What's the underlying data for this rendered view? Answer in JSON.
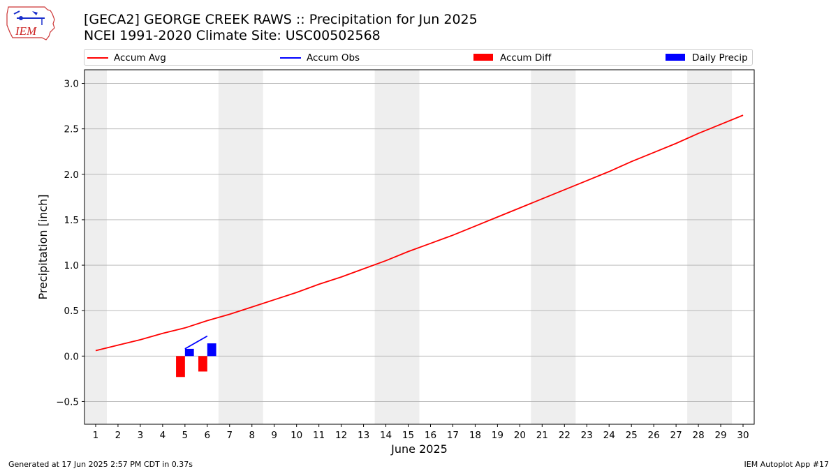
{
  "header": {
    "title": "[GECA2] GEORGE CREEK RAWS :: Precipitation for Jun 2025",
    "subtitle": "NCEI 1991-2020 Climate Site: USC00502568"
  },
  "logo": {
    "text": "IEM",
    "icon": "iem-logo-icon"
  },
  "footer": {
    "left": "Generated at 17 Jun 2025 2:57 PM CDT in 0.37s",
    "right": "IEM Autoplot App #17"
  },
  "colors": {
    "accum_avg": "#ff0000",
    "accum_obs": "#0000ff",
    "accum_diff": "#ff0000",
    "daily_precip": "#0000ff",
    "weekend_band": "#eeeeee",
    "grid": "#b0b0b0"
  },
  "chart_data": {
    "type": "bar",
    "title": "[GECA2] GEORGE CREEK RAWS :: Precipitation for Jun 2025",
    "subtitle": "NCEI 1991-2020 Climate Site: USC00502568",
    "xlabel": "June 2025",
    "ylabel": "Precipitation [inch]",
    "xlim": [
      0.5,
      30.5
    ],
    "ylim": [
      -0.75,
      3.15
    ],
    "x_ticks": [
      1,
      2,
      3,
      4,
      5,
      6,
      7,
      8,
      9,
      10,
      11,
      12,
      13,
      14,
      15,
      16,
      17,
      18,
      19,
      20,
      21,
      22,
      23,
      24,
      25,
      26,
      27,
      28,
      29,
      30
    ],
    "y_ticks": [
      -0.5,
      0.0,
      0.5,
      1.0,
      1.5,
      2.0,
      2.5,
      3.0
    ],
    "y_tick_labels": [
      "−0.5",
      "0.0",
      "0.5",
      "1.0",
      "1.5",
      "2.0",
      "2.5",
      "3.0"
    ],
    "grid": "y",
    "legend_position": "top",
    "weekend_bands": [
      [
        0.5,
        1.5
      ],
      [
        6.5,
        8.5
      ],
      [
        13.5,
        15.5
      ],
      [
        20.5,
        22.5
      ],
      [
        27.5,
        29.5
      ]
    ],
    "legend": [
      {
        "label": "Accum Avg",
        "kind": "line",
        "color": "#ff0000"
      },
      {
        "label": "Accum Obs",
        "kind": "line",
        "color": "#0000ff"
      },
      {
        "label": "Accum Diff",
        "kind": "patch",
        "color": "#ff0000"
      },
      {
        "label": "Daily Precip",
        "kind": "patch",
        "color": "#0000ff"
      }
    ],
    "series": [
      {
        "name": "Accum Avg",
        "type": "line",
        "x": [
          1,
          2,
          3,
          4,
          5,
          6,
          7,
          8,
          9,
          10,
          11,
          12,
          13,
          14,
          15,
          16,
          17,
          18,
          19,
          20,
          21,
          22,
          23,
          24,
          25,
          26,
          27,
          28,
          29,
          30
        ],
        "values": [
          0.06,
          0.12,
          0.18,
          0.25,
          0.31,
          0.39,
          0.46,
          0.54,
          0.62,
          0.7,
          0.79,
          0.87,
          0.96,
          1.05,
          1.15,
          1.24,
          1.33,
          1.43,
          1.53,
          1.63,
          1.73,
          1.83,
          1.93,
          2.03,
          2.14,
          2.24,
          2.34,
          2.45,
          2.55,
          2.65
        ]
      },
      {
        "name": "Accum Obs",
        "type": "line",
        "x": [
          5,
          6
        ],
        "values": [
          0.08,
          0.22
        ]
      },
      {
        "name": "Accum Diff",
        "type": "bar",
        "x": [
          5,
          6
        ],
        "values": [
          -0.23,
          -0.17
        ]
      },
      {
        "name": "Daily Precip",
        "type": "bar",
        "x": [
          5,
          6
        ],
        "values": [
          0.08,
          0.14
        ]
      }
    ]
  }
}
